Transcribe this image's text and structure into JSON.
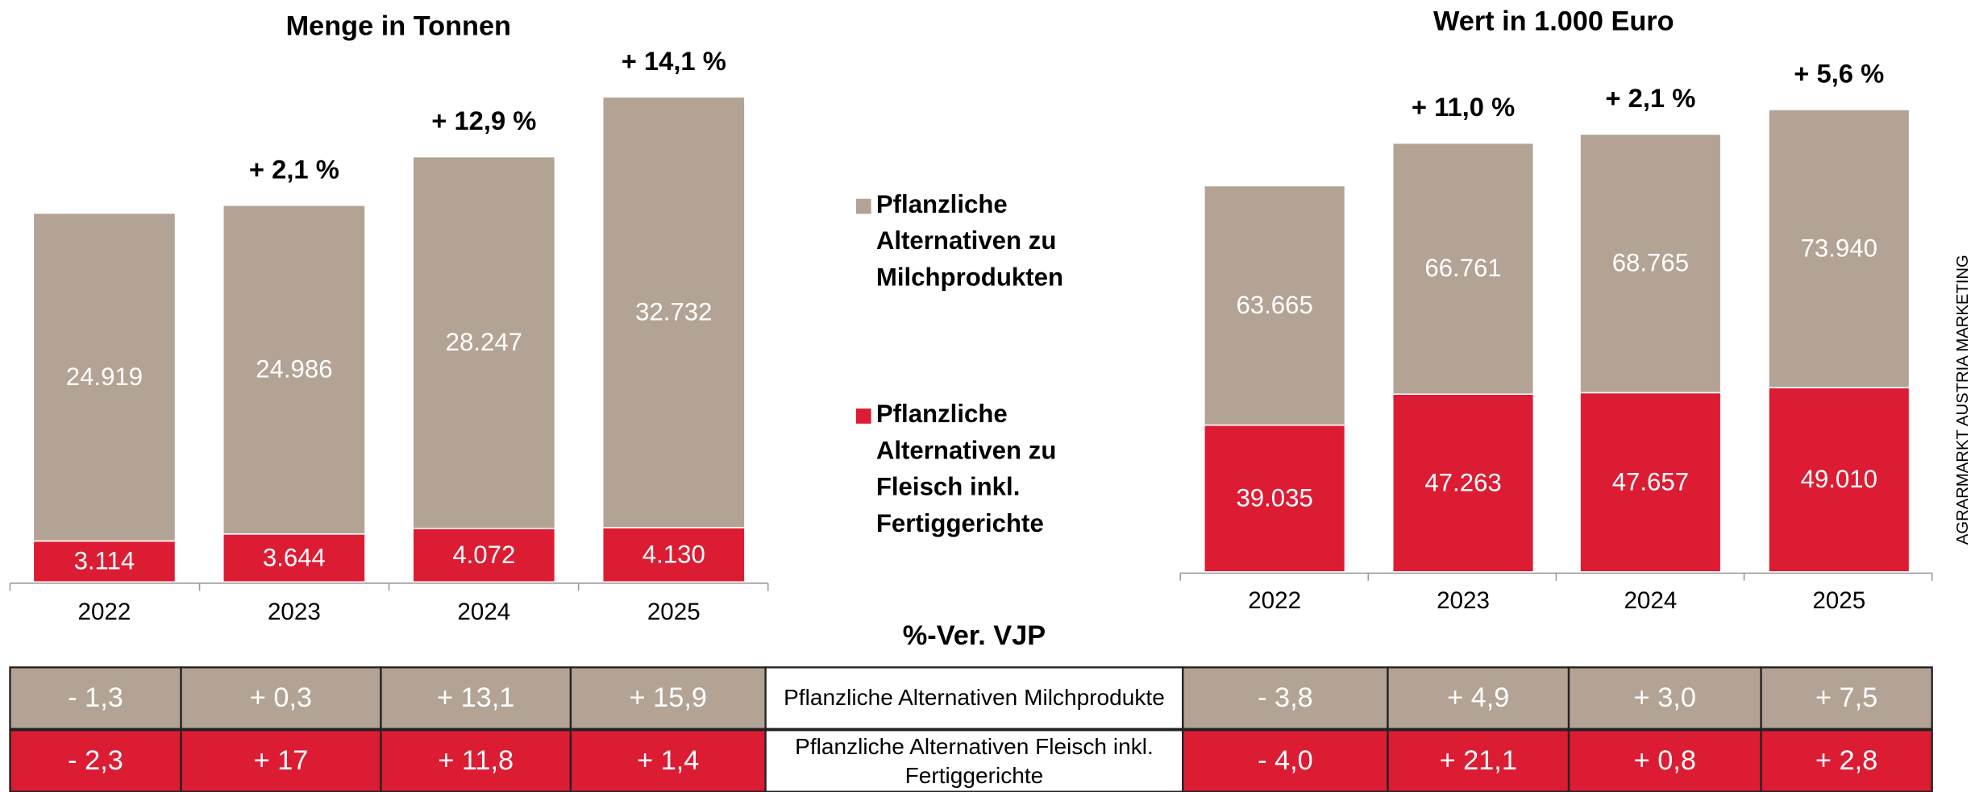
{
  "chart_data": [
    {
      "type": "bar",
      "stacked": true,
      "title": "Menge in Tonnen",
      "categories": [
        "2022",
        "2023",
        "2024",
        "2025"
      ],
      "series": [
        {
          "name": "Pflanzliche Alternativen zu Milchprodukten",
          "color": "#b3a394",
          "values": [
            24919,
            24986,
            28247,
            32732
          ],
          "value_labels": [
            "24.919",
            "24.986",
            "28.247",
            "32.732"
          ]
        },
        {
          "name": "Pflanzliche Alternativen zu Fleisch inkl. Fertiggerichte",
          "color": "#dc1c33",
          "values": [
            3114,
            3644,
            4072,
            4130
          ],
          "value_labels": [
            "3.114",
            "3.644",
            "4.072",
            "4.130"
          ]
        }
      ],
      "annotations": [
        null,
        "+ 2,1 %",
        "+ 12,9 %",
        "+ 14,1 %"
      ]
    },
    {
      "type": "bar",
      "stacked": true,
      "title": "Wert in 1.000 Euro",
      "categories": [
        "2022",
        "2023",
        "2024",
        "2025"
      ],
      "series": [
        {
          "color": "#b3a394",
          "values": [
            63665,
            66761,
            68765,
            73940
          ],
          "value_labels": [
            "63.665",
            "66.761",
            "68.765",
            "73.940"
          ]
        },
        {
          "color": "#dc1c33",
          "values": [
            39035,
            47263,
            47657,
            49010
          ],
          "value_labels": [
            "39.035",
            "47.263",
            "47.657",
            "49.010"
          ]
        }
      ],
      "annotations": [
        null,
        "+ 11,0 %",
        "+ 2,1 %",
        "+ 5,6 %"
      ]
    }
  ],
  "table": {
    "title": "%-Ver. VJP",
    "rows": [
      [
        "- 1,3",
        "+ 0,3",
        "+ 13,1",
        "+ 15,9",
        "Pflanzliche Alternativen Milchprodukte",
        "- 3,8",
        "+ 4,9",
        "+ 3,0",
        "+ 7,5"
      ],
      [
        "- 2,3",
        "+ 17",
        "+ 11,8",
        "+ 1,4",
        "Pflanzliche Alternativen Fleisch inkl. Fertiggerichte",
        "- 4,0",
        "+ 21,1",
        "+ 0,8",
        "+ 2,8"
      ]
    ]
  },
  "source": "AGRARMARKT AUSTRIA MARKETING"
}
